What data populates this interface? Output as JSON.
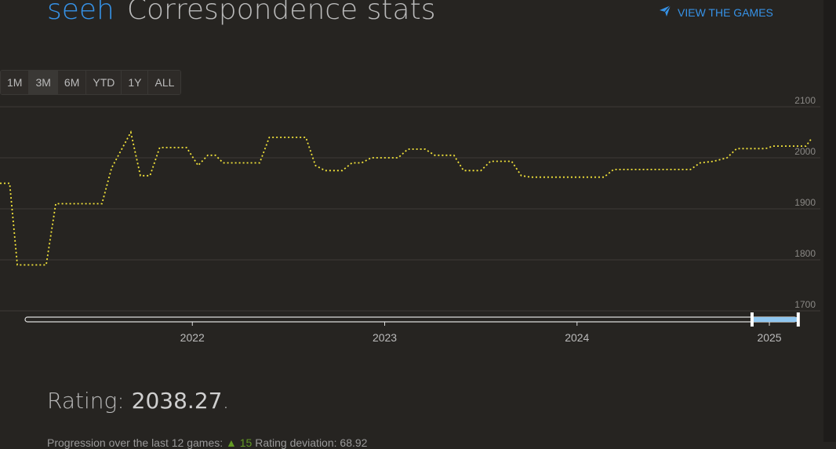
{
  "header": {
    "username": "seeh",
    "title": "Correspondence stats"
  },
  "actions": {
    "view_games_label": "VIEW THE GAMES",
    "view_games_icon": "send-icon"
  },
  "range_selector": {
    "buttons": [
      "1M",
      "3M",
      "6M",
      "YTD",
      "1Y",
      "ALL"
    ],
    "selected": "3M"
  },
  "summary": {
    "rating_label": "Rating:",
    "rating_value": "2038.27",
    "rating_suffix": ".",
    "progression_label": "Progression over the last 12 games:",
    "progression_value": "15",
    "deviation_label": "Rating deviation:",
    "deviation_value": "68.92"
  },
  "chart_data": {
    "type": "line",
    "line_color": "#f2e33a",
    "line_style": "dotted",
    "grid": true,
    "y_ticks": [
      2100,
      2000,
      1900,
      1800,
      1700
    ],
    "ylim": [
      1700,
      2100
    ],
    "x_tick_labels": [
      "2022",
      "2023",
      "2024",
      "2025"
    ],
    "x_ticks": [
      2022.0,
      2023.0,
      2024.0,
      2025.0
    ],
    "xlim": [
      2021.0,
      2025.22
    ],
    "navigator_selection": [
      2024.91,
      2025.15
    ],
    "points": [
      [
        2021.0,
        1950
      ],
      [
        2021.05,
        1950
      ],
      [
        2021.09,
        1790
      ],
      [
        2021.24,
        1790
      ],
      [
        2021.29,
        1910
      ],
      [
        2021.53,
        1910
      ],
      [
        2021.58,
        1980
      ],
      [
        2021.68,
        2050
      ],
      [
        2021.73,
        1965
      ],
      [
        2021.78,
        1965
      ],
      [
        2021.83,
        2020
      ],
      [
        2021.97,
        2020
      ],
      [
        2022.03,
        1985
      ],
      [
        2022.08,
        2005
      ],
      [
        2022.12,
        2005
      ],
      [
        2022.16,
        1990
      ],
      [
        2022.35,
        1990
      ],
      [
        2022.4,
        2040
      ],
      [
        2022.59,
        2040
      ],
      [
        2022.64,
        1985
      ],
      [
        2022.69,
        1975
      ],
      [
        2022.78,
        1975
      ],
      [
        2022.83,
        1990
      ],
      [
        2022.88,
        1990
      ],
      [
        2022.93,
        2000
      ],
      [
        2022.98,
        2000
      ],
      [
        2023.07,
        2000
      ],
      [
        2023.12,
        2017
      ],
      [
        2023.21,
        2017
      ],
      [
        2023.26,
        2005
      ],
      [
        2023.36,
        2005
      ],
      [
        2023.41,
        1975
      ],
      [
        2023.5,
        1975
      ],
      [
        2023.55,
        1993
      ],
      [
        2023.66,
        1993
      ],
      [
        2023.71,
        1965
      ],
      [
        2023.76,
        1962
      ],
      [
        2023.86,
        1962
      ],
      [
        2024.14,
        1962
      ],
      [
        2024.19,
        1977
      ],
      [
        2024.59,
        1977
      ],
      [
        2024.64,
        1990
      ],
      [
        2024.71,
        1993
      ],
      [
        2024.78,
        2000
      ],
      [
        2024.83,
        2018
      ],
      [
        2024.98,
        2018
      ],
      [
        2025.02,
        2023
      ],
      [
        2025.19,
        2023
      ],
      [
        2025.22,
        2038
      ]
    ]
  }
}
